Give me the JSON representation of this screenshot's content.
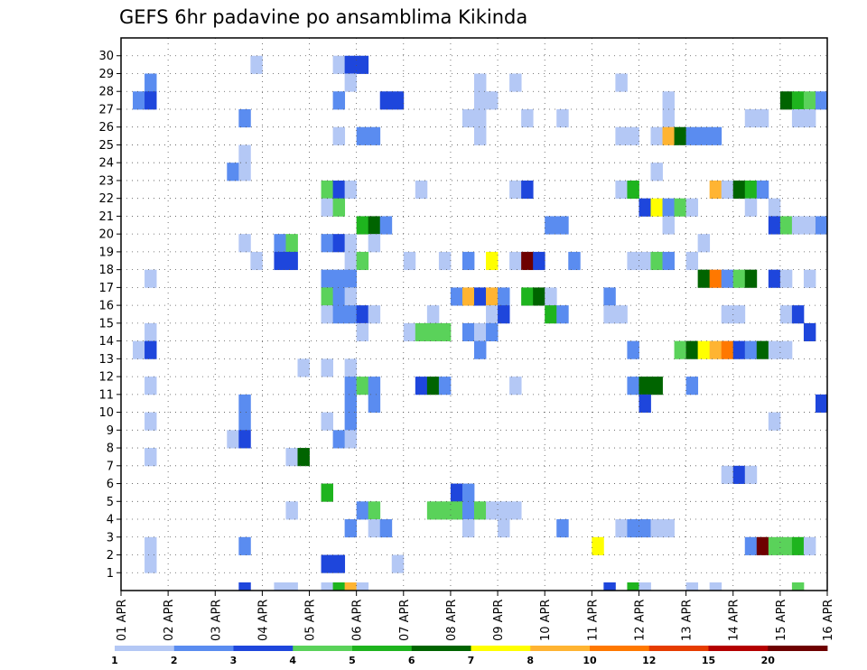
{
  "chart_data": {
    "type": "heatmap",
    "title": "GEFS 6hr padavine po ansamblima Kikinda",
    "xlabel": "",
    "ylabel": "",
    "x_tick_labels": [
      "01 APR",
      "02 APR",
      "03 APR",
      "04 APR",
      "05 APR",
      "06 APR",
      "07 APR",
      "08 APR",
      "09 APR",
      "10 APR",
      "11 APR",
      "12 APR",
      "13 APR",
      "14 APR",
      "15 APR",
      "16 APR"
    ],
    "y_tick_labels": [
      "1",
      "2",
      "3",
      "4",
      "5",
      "6",
      "7",
      "8",
      "9",
      "10",
      "11",
      "12",
      "13",
      "14",
      "15",
      "16",
      "17",
      "18",
      "19",
      "20",
      "21",
      "22",
      "23",
      "24",
      "25",
      "26",
      "27",
      "28",
      "29",
      "30"
    ],
    "time_steps": 60,
    "time_step_hours": 6,
    "members": 31,
    "legend": {
      "labels": [
        "1",
        "2",
        "3",
        "4",
        "5",
        "6",
        "7",
        "8",
        "10",
        "12",
        "15",
        "20"
      ],
      "colors": [
        "#b4c8f5",
        "#5a8cf0",
        "#1e46dc",
        "#5ad25a",
        "#1eb41e",
        "#006400",
        "#ffff00",
        "#ffb432",
        "#ff7800",
        "#e63c00",
        "#b40000",
        "#6e0000"
      ]
    },
    "cells": [
      [
        11,
        30,
        0
      ],
      [
        18,
        30,
        0
      ],
      [
        19,
        30,
        2
      ],
      [
        20,
        30,
        2
      ],
      [
        2,
        29,
        1
      ],
      [
        19,
        29,
        0
      ],
      [
        30,
        29,
        0
      ],
      [
        33,
        29,
        0
      ],
      [
        42,
        29,
        0
      ],
      [
        1,
        28,
        1
      ],
      [
        2,
        28,
        2
      ],
      [
        18,
        28,
        1
      ],
      [
        22,
        28,
        2
      ],
      [
        23,
        28,
        2
      ],
      [
        30,
        28,
        0
      ],
      [
        31,
        28,
        0
      ],
      [
        46,
        28,
        0
      ],
      [
        56,
        28,
        5
      ],
      [
        57,
        28,
        4
      ],
      [
        58,
        28,
        3
      ],
      [
        59,
        28,
        1
      ],
      [
        10,
        27,
        1
      ],
      [
        29,
        27,
        0
      ],
      [
        30,
        27,
        0
      ],
      [
        34,
        27,
        0
      ],
      [
        37,
        27,
        0
      ],
      [
        46,
        27,
        0
      ],
      [
        53,
        27,
        0
      ],
      [
        54,
        27,
        0
      ],
      [
        57,
        27,
        0
      ],
      [
        58,
        27,
        0
      ],
      [
        18,
        26,
        0
      ],
      [
        20,
        26,
        1
      ],
      [
        21,
        26,
        1
      ],
      [
        30,
        26,
        0
      ],
      [
        42,
        26,
        0
      ],
      [
        43,
        26,
        0
      ],
      [
        45,
        26,
        0
      ],
      [
        46,
        26,
        7
      ],
      [
        47,
        26,
        5
      ],
      [
        48,
        26,
        1
      ],
      [
        49,
        26,
        1
      ],
      [
        50,
        26,
        1
      ],
      [
        10,
        25,
        0
      ],
      [
        9,
        24,
        1
      ],
      [
        10,
        24,
        0
      ],
      [
        45,
        24,
        0
      ],
      [
        17,
        23,
        3
      ],
      [
        18,
        23,
        2
      ],
      [
        19,
        23,
        0
      ],
      [
        25,
        23,
        0
      ],
      [
        33,
        23,
        0
      ],
      [
        34,
        23,
        2
      ],
      [
        42,
        23,
        0
      ],
      [
        43,
        23,
        4
      ],
      [
        50,
        23,
        7
      ],
      [
        51,
        23,
        0
      ],
      [
        52,
        23,
        5
      ],
      [
        53,
        23,
        4
      ],
      [
        54,
        23,
        1
      ],
      [
        17,
        22,
        0
      ],
      [
        18,
        22,
        3
      ],
      [
        44,
        22,
        2
      ],
      [
        45,
        22,
        6
      ],
      [
        46,
        22,
        1
      ],
      [
        47,
        22,
        3
      ],
      [
        48,
        22,
        0
      ],
      [
        53,
        22,
        0
      ],
      [
        55,
        22,
        0
      ],
      [
        20,
        21,
        4
      ],
      [
        21,
        21,
        5
      ],
      [
        22,
        21,
        1
      ],
      [
        36,
        21,
        1
      ],
      [
        37,
        21,
        1
      ],
      [
        46,
        21,
        0
      ],
      [
        55,
        21,
        2
      ],
      [
        56,
        21,
        3
      ],
      [
        57,
        21,
        0
      ],
      [
        58,
        21,
        0
      ],
      [
        59,
        21,
        1
      ],
      [
        10,
        20,
        0
      ],
      [
        13,
        20,
        1
      ],
      [
        14,
        20,
        3
      ],
      [
        17,
        20,
        1
      ],
      [
        18,
        20,
        2
      ],
      [
        19,
        20,
        0
      ],
      [
        21,
        20,
        0
      ],
      [
        49,
        20,
        0
      ],
      [
        11,
        19,
        0
      ],
      [
        13,
        19,
        2
      ],
      [
        14,
        19,
        2
      ],
      [
        19,
        19,
        0
      ],
      [
        20,
        19,
        3
      ],
      [
        24,
        19,
        0
      ],
      [
        27,
        19,
        0
      ],
      [
        29,
        19,
        1
      ],
      [
        31,
        19,
        6
      ],
      [
        33,
        19,
        0
      ],
      [
        34,
        19,
        11
      ],
      [
        35,
        19,
        2
      ],
      [
        38,
        19,
        1
      ],
      [
        43,
        19,
        0
      ],
      [
        44,
        19,
        0
      ],
      [
        45,
        19,
        3
      ],
      [
        46,
        19,
        1
      ],
      [
        48,
        19,
        0
      ],
      [
        2,
        18,
        0
      ],
      [
        17,
        18,
        1
      ],
      [
        18,
        18,
        1
      ],
      [
        19,
        18,
        1
      ],
      [
        49,
        18,
        5
      ],
      [
        50,
        18,
        8
      ],
      [
        51,
        18,
        1
      ],
      [
        52,
        18,
        3
      ],
      [
        53,
        18,
        5
      ],
      [
        55,
        18,
        2
      ],
      [
        56,
        18,
        0
      ],
      [
        58,
        18,
        0
      ],
      [
        17,
        17,
        3
      ],
      [
        18,
        17,
        1
      ],
      [
        19,
        17,
        0
      ],
      [
        28,
        17,
        1
      ],
      [
        29,
        17,
        7
      ],
      [
        30,
        17,
        2
      ],
      [
        31,
        17,
        7
      ],
      [
        32,
        17,
        1
      ],
      [
        34,
        17,
        4
      ],
      [
        35,
        17,
        5
      ],
      [
        36,
        17,
        0
      ],
      [
        41,
        17,
        1
      ],
      [
        17,
        16,
        0
      ],
      [
        18,
        16,
        1
      ],
      [
        19,
        16,
        1
      ],
      [
        20,
        16,
        2
      ],
      [
        21,
        16,
        0
      ],
      [
        26,
        16,
        0
      ],
      [
        31,
        16,
        0
      ],
      [
        32,
        16,
        2
      ],
      [
        36,
        16,
        4
      ],
      [
        37,
        16,
        1
      ],
      [
        41,
        16,
        0
      ],
      [
        42,
        16,
        0
      ],
      [
        51,
        16,
        0
      ],
      [
        52,
        16,
        0
      ],
      [
        56,
        16,
        0
      ],
      [
        57,
        16,
        2
      ],
      [
        2,
        15,
        0
      ],
      [
        20,
        15,
        0
      ],
      [
        24,
        15,
        0
      ],
      [
        25,
        15,
        3
      ],
      [
        26,
        15,
        3
      ],
      [
        27,
        15,
        3
      ],
      [
        29,
        15,
        1
      ],
      [
        30,
        15,
        0
      ],
      [
        31,
        15,
        1
      ],
      [
        58,
        15,
        2
      ],
      [
        1,
        14,
        0
      ],
      [
        2,
        14,
        2
      ],
      [
        30,
        14,
        1
      ],
      [
        43,
        14,
        1
      ],
      [
        47,
        14,
        3
      ],
      [
        48,
        14,
        5
      ],
      [
        49,
        14,
        6
      ],
      [
        50,
        14,
        7
      ],
      [
        51,
        14,
        8
      ],
      [
        52,
        14,
        2
      ],
      [
        53,
        14,
        1
      ],
      [
        54,
        14,
        5
      ],
      [
        55,
        14,
        0
      ],
      [
        56,
        14,
        0
      ],
      [
        15,
        13,
        0
      ],
      [
        17,
        13,
        0
      ],
      [
        19,
        13,
        0
      ],
      [
        2,
        12,
        0
      ],
      [
        19,
        12,
        1
      ],
      [
        20,
        12,
        3
      ],
      [
        21,
        12,
        1
      ],
      [
        25,
        12,
        2
      ],
      [
        26,
        12,
        5
      ],
      [
        27,
        12,
        1
      ],
      [
        33,
        12,
        0
      ],
      [
        43,
        12,
        1
      ],
      [
        44,
        12,
        5
      ],
      [
        45,
        12,
        5
      ],
      [
        48,
        12,
        1
      ],
      [
        10,
        11,
        1
      ],
      [
        19,
        11,
        1
      ],
      [
        21,
        11,
        1
      ],
      [
        44,
        11,
        2
      ],
      [
        59,
        11,
        2
      ],
      [
        2,
        10,
        0
      ],
      [
        10,
        10,
        1
      ],
      [
        17,
        10,
        0
      ],
      [
        19,
        10,
        1
      ],
      [
        55,
        10,
        0
      ],
      [
        9,
        9,
        0
      ],
      [
        10,
        9,
        2
      ],
      [
        18,
        9,
        1
      ],
      [
        19,
        9,
        0
      ],
      [
        2,
        8,
        0
      ],
      [
        14,
        8,
        0
      ],
      [
        15,
        8,
        5
      ],
      [
        51,
        7,
        0
      ],
      [
        52,
        7,
        2
      ],
      [
        53,
        7,
        0
      ],
      [
        17,
        6,
        4
      ],
      [
        28,
        6,
        2
      ],
      [
        29,
        6,
        1
      ],
      [
        14,
        5,
        0
      ],
      [
        20,
        5,
        1
      ],
      [
        21,
        5,
        3
      ],
      [
        26,
        5,
        3
      ],
      [
        27,
        5,
        3
      ],
      [
        28,
        5,
        3
      ],
      [
        29,
        5,
        1
      ],
      [
        30,
        5,
        3
      ],
      [
        31,
        5,
        0
      ],
      [
        32,
        5,
        0
      ],
      [
        33,
        5,
        0
      ],
      [
        19,
        4,
        1
      ],
      [
        21,
        4,
        0
      ],
      [
        22,
        4,
        1
      ],
      [
        29,
        4,
        0
      ],
      [
        32,
        4,
        0
      ],
      [
        37,
        4,
        1
      ],
      [
        42,
        4,
        0
      ],
      [
        43,
        4,
        1
      ],
      [
        44,
        4,
        1
      ],
      [
        45,
        4,
        0
      ],
      [
        46,
        4,
        0
      ],
      [
        2,
        3,
        0
      ],
      [
        10,
        3,
        1
      ],
      [
        40,
        3,
        6
      ],
      [
        53,
        3,
        1
      ],
      [
        54,
        3,
        11
      ],
      [
        55,
        3,
        3
      ],
      [
        56,
        3,
        3
      ],
      [
        57,
        3,
        4
      ],
      [
        58,
        3,
        0
      ],
      [
        2,
        2,
        0
      ],
      [
        17,
        2,
        2
      ],
      [
        18,
        2,
        2
      ],
      [
        23,
        2,
        0
      ]
    ],
    "bottom_strip": [
      [
        10,
        2
      ],
      [
        13,
        0
      ],
      [
        14,
        0
      ],
      [
        17,
        0
      ],
      [
        18,
        4
      ],
      [
        19,
        7
      ],
      [
        20,
        0
      ],
      [
        41,
        2
      ],
      [
        43,
        4
      ],
      [
        44,
        0
      ],
      [
        48,
        0
      ],
      [
        50,
        0
      ],
      [
        57,
        3
      ]
    ]
  }
}
